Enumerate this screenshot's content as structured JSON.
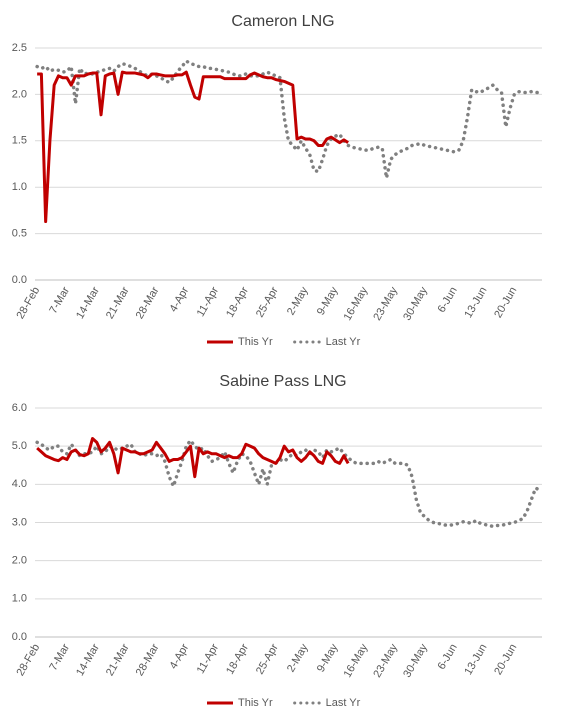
{
  "chart_data": [
    {
      "type": "line",
      "title": "Cameron LNG",
      "categories": [
        "28-Feb",
        null,
        null,
        null,
        null,
        null,
        null,
        "7-Mar",
        null,
        null,
        null,
        null,
        null,
        null,
        "14-Mar",
        null,
        null,
        null,
        null,
        null,
        null,
        "21-Mar",
        null,
        null,
        null,
        null,
        null,
        null,
        "28-Mar",
        null,
        null,
        null,
        null,
        null,
        null,
        "4-Apr",
        null,
        null,
        null,
        null,
        null,
        null,
        "11-Apr",
        null,
        null,
        null,
        null,
        null,
        null,
        "18-Apr",
        null,
        null,
        null,
        null,
        null,
        null,
        "25-Apr",
        null,
        null,
        null,
        null,
        null,
        null,
        "2-May",
        null,
        null,
        null,
        null,
        null,
        null,
        "9-May",
        null,
        null,
        null,
        null,
        null,
        null,
        "16-May",
        null,
        null,
        null,
        null,
        null,
        null,
        "23-May",
        null,
        null,
        null,
        null,
        null,
        null,
        "30-May",
        null,
        null,
        null,
        null,
        null,
        null,
        "6-Jun",
        null,
        null,
        null,
        null,
        null,
        null,
        "13-Jun",
        null,
        null,
        null,
        null,
        null,
        null,
        "20-Jun",
        null,
        null,
        null,
        null,
        null,
        null
      ],
      "series": [
        {
          "name": "This Yr",
          "color": "#c00000",
          "dash": "solid",
          "values": [
            2.22,
            2.22,
            0.63,
            1.5,
            2.1,
            2.2,
            2.18,
            2.18,
            2.1,
            2.2,
            2.2,
            2.2,
            2.22,
            2.23,
            2.23,
            1.78,
            2.2,
            2.22,
            2.23,
            2.0,
            2.24,
            2.23,
            2.23,
            2.23,
            2.22,
            2.21,
            2.18,
            2.22,
            2.22,
            2.21,
            2.2,
            2.2,
            2.2,
            2.21,
            2.21,
            2.24,
            2.1,
            1.97,
            1.95,
            2.19,
            2.19,
            2.19,
            2.19,
            2.19,
            2.17,
            2.17,
            2.17,
            2.17,
            2.17,
            2.17,
            2.21,
            2.23,
            2.21,
            2.19,
            2.18,
            2.18,
            2.16,
            2.15,
            2.14,
            2.12,
            2.1,
            1.52,
            1.54,
            1.52,
            1.52,
            1.5,
            1.45,
            1.45,
            1.52,
            1.54,
            1.51,
            1.48,
            1.51,
            1.48,
            null,
            null,
            null,
            null,
            null,
            null,
            null,
            null,
            null,
            null,
            null,
            null,
            null,
            null,
            null,
            null,
            null,
            null,
            null,
            null,
            null,
            null,
            null,
            null,
            null,
            null,
            null,
            null,
            null,
            null,
            null,
            null,
            null,
            null,
            null,
            null,
            null,
            null,
            null,
            null,
            null,
            null,
            null,
            null,
            null
          ]
        },
        {
          "name": "Last Yr",
          "color": "#808080",
          "dash": "dotted",
          "values": [
            2.3,
            2.28,
            2.3,
            2.25,
            2.27,
            2.26,
            2.24,
            2.25,
            2.3,
            1.9,
            2.28,
            2.22,
            2.23,
            2.22,
            2.24,
            2.25,
            2.27,
            2.28,
            2.25,
            2.3,
            2.33,
            2.32,
            2.3,
            2.28,
            2.25,
            2.22,
            2.2,
            2.22,
            2.2,
            2.18,
            2.15,
            2.13,
            2.18,
            2.25,
            2.3,
            2.36,
            2.33,
            2.32,
            2.3,
            2.3,
            2.28,
            2.28,
            2.27,
            2.26,
            2.25,
            2.24,
            2.22,
            2.2,
            2.2,
            2.22,
            2.2,
            2.2,
            2.2,
            2.22,
            2.24,
            2.22,
            2.2,
            2.18,
            1.75,
            1.5,
            1.45,
            1.4,
            1.5,
            1.42,
            1.35,
            1.18,
            1.17,
            1.3,
            1.45,
            1.52,
            1.55,
            1.57,
            1.5,
            1.45,
            1.43,
            1.42,
            1.41,
            1.4,
            1.4,
            1.42,
            1.43,
            1.42,
            1.1,
            1.3,
            1.35,
            1.38,
            1.4,
            1.42,
            1.45,
            1.46,
            1.47,
            1.45,
            1.44,
            1.43,
            1.42,
            1.41,
            1.4,
            1.39,
            1.38,
            1.4,
            1.5,
            1.75,
            2.05,
            2.03,
            2.02,
            2.05,
            2.07,
            2.1,
            2.05,
            2.02,
            1.65,
            1.85,
            2.0,
            2.03,
            2.02,
            2.02,
            2.03,
            2.02,
            2.02
          ]
        }
      ],
      "ylim": [
        0,
        2.5
      ],
      "yticks": [
        {
          "value": 0,
          "label": "0.0"
        },
        {
          "value": 0.5,
          "label": "0.5"
        },
        {
          "value": 1,
          "label": "1.0"
        },
        {
          "value": 1.5,
          "label": "1.5"
        },
        {
          "value": 2,
          "label": "2.0"
        },
        {
          "value": 2.5,
          "label": "2.5"
        }
      ],
      "grid": true,
      "legend": "bottom"
    },
    {
      "type": "line",
      "title": "Sabine Pass LNG",
      "categories": [
        "28-Feb",
        null,
        null,
        null,
        null,
        null,
        null,
        "7-Mar",
        null,
        null,
        null,
        null,
        null,
        null,
        "14-Mar",
        null,
        null,
        null,
        null,
        null,
        null,
        "21-Mar",
        null,
        null,
        null,
        null,
        null,
        null,
        "28-Mar",
        null,
        null,
        null,
        null,
        null,
        null,
        "4-Apr",
        null,
        null,
        null,
        null,
        null,
        null,
        "11-Apr",
        null,
        null,
        null,
        null,
        null,
        null,
        "18-Apr",
        null,
        null,
        null,
        null,
        null,
        null,
        "25-Apr",
        null,
        null,
        null,
        null,
        null,
        null,
        "2-May",
        null,
        null,
        null,
        null,
        null,
        null,
        "9-May",
        null,
        null,
        null,
        null,
        null,
        null,
        "16-May",
        null,
        null,
        null,
        null,
        null,
        null,
        "23-May",
        null,
        null,
        null,
        null,
        null,
        null,
        "30-May",
        null,
        null,
        null,
        null,
        null,
        null,
        "6-Jun",
        null,
        null,
        null,
        null,
        null,
        null,
        "13-Jun",
        null,
        null,
        null,
        null,
        null,
        null,
        "20-Jun",
        null,
        null,
        null,
        null,
        null,
        null
      ],
      "series": [
        {
          "name": "This Yr",
          "color": "#c00000",
          "dash": "solid",
          "values": [
            4.95,
            4.85,
            4.75,
            4.7,
            4.65,
            4.62,
            4.7,
            4.65,
            4.85,
            4.9,
            4.78,
            4.75,
            4.8,
            5.2,
            5.1,
            4.85,
            4.95,
            5.1,
            4.8,
            4.3,
            4.95,
            4.9,
            4.85,
            4.85,
            4.8,
            4.8,
            4.85,
            4.9,
            5.1,
            4.95,
            4.8,
            4.6,
            4.65,
            4.65,
            4.7,
            4.85,
            5.0,
            4.2,
            4.95,
            4.8,
            4.85,
            4.8,
            4.8,
            4.75,
            4.7,
            4.75,
            4.7,
            4.7,
            4.8,
            5.05,
            5.0,
            4.95,
            4.8,
            4.7,
            4.65,
            4.6,
            4.55,
            4.7,
            5.0,
            4.85,
            4.9,
            4.7,
            4.6,
            4.7,
            4.85,
            4.75,
            4.6,
            4.55,
            4.85,
            4.75,
            4.6,
            4.55,
            4.75,
            4.55,
            null,
            null,
            null,
            null,
            null,
            null,
            null,
            null,
            null,
            null,
            null,
            null,
            null,
            null,
            null,
            null,
            null,
            null,
            null,
            null,
            null,
            null,
            null,
            null,
            null,
            null,
            null,
            null,
            null,
            null,
            null,
            null,
            null,
            null,
            null,
            null,
            null,
            null,
            null,
            null,
            null,
            null,
            null,
            null,
            null
          ]
        },
        {
          "name": "Last Yr",
          "color": "#808080",
          "dash": "dotted",
          "values": [
            5.1,
            5.05,
            4.95,
            4.9,
            5.0,
            5.0,
            4.85,
            4.8,
            5.05,
            4.9,
            4.75,
            4.8,
            4.8,
            4.85,
            5.0,
            4.8,
            4.85,
            5.0,
            4.95,
            4.9,
            4.95,
            5.0,
            5.05,
            4.85,
            4.8,
            4.75,
            4.8,
            4.8,
            4.75,
            4.8,
            4.6,
            4.2,
            3.95,
            4.3,
            4.6,
            5.0,
            5.15,
            5.0,
            4.9,
            4.95,
            4.75,
            4.6,
            4.65,
            4.7,
            4.85,
            4.55,
            4.3,
            4.6,
            4.8,
            4.75,
            4.6,
            4.3,
            4.0,
            4.4,
            4.0,
            4.5,
            4.55,
            4.65,
            4.6,
            4.7,
            4.8,
            4.75,
            4.85,
            4.9,
            4.8,
            4.9,
            4.85,
            4.7,
            4.9,
            4.85,
            4.9,
            4.95,
            4.8,
            4.7,
            4.6,
            4.55,
            4.55,
            4.55,
            4.55,
            4.55,
            4.6,
            4.55,
            4.6,
            4.65,
            4.55,
            4.55,
            4.55,
            4.5,
            4.2,
            3.6,
            3.25,
            3.15,
            3.05,
            3.0,
            2.98,
            2.95,
            2.93,
            2.93,
            2.95,
            2.98,
            3.02,
            3.0,
            2.98,
            3.05,
            2.98,
            2.95,
            2.92,
            2.9,
            2.92,
            2.93,
            2.95,
            2.98,
            3.0,
            3.05,
            3.1,
            3.3,
            3.6,
            3.9,
            3.85
          ]
        }
      ],
      "ylim": [
        0,
        6
      ],
      "yticks": [
        {
          "value": 0,
          "label": "0.0"
        },
        {
          "value": 1,
          "label": "1.0"
        },
        {
          "value": 2,
          "label": "2.0"
        },
        {
          "value": 3,
          "label": "3.0"
        },
        {
          "value": 4,
          "label": "4.0"
        },
        {
          "value": 5,
          "label": "5.0"
        },
        {
          "value": 6,
          "label": "6.0"
        }
      ],
      "grid": true,
      "legend": "bottom"
    }
  ]
}
